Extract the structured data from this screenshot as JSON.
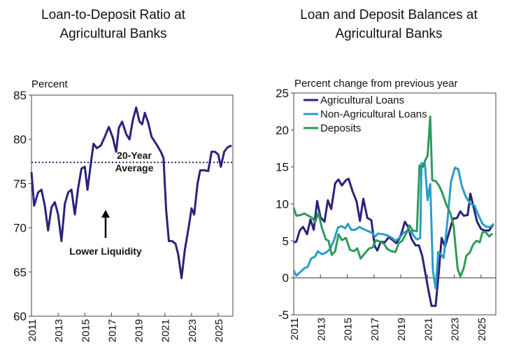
{
  "chart_data": [
    {
      "type": "line",
      "title": [
        "Loan-to-Deposit Ratio at",
        "Agricultural Banks"
      ],
      "ylabel": "Percent",
      "ylim": [
        60,
        85
      ],
      "yticks": [
        60,
        65,
        70,
        75,
        80,
        85
      ],
      "xlim": [
        2011,
        2026.1
      ],
      "xticks": [
        "2011",
        "2013",
        "2015",
        "2017",
        "2019",
        "2021",
        "2023",
        "2025"
      ],
      "grid": false,
      "color": "#28237a",
      "reference_line": {
        "value": 77.4,
        "label": [
          "20-Year",
          "Average"
        ],
        "style": "dotted"
      },
      "annotation": {
        "text": "Lower Liquidity",
        "arrow": "up"
      },
      "series": [
        {
          "x": [
            2011.0,
            2011.2,
            2011.5,
            2011.75,
            2012.0,
            2012.25,
            2012.5,
            2012.75,
            2013.0,
            2013.25,
            2013.5,
            2013.75,
            2014.0,
            2014.25,
            2014.5,
            2014.75,
            2015.0,
            2015.2,
            2015.5,
            2015.65,
            2015.9,
            2016.2,
            2016.5,
            2016.8,
            2017.1,
            2017.35,
            2017.55,
            2017.8,
            2018.1,
            2018.35,
            2018.6,
            2018.85,
            2019.1,
            2019.3,
            2019.5,
            2019.75,
            2020.0,
            2020.35,
            2020.7,
            2020.9,
            2021.1,
            2021.3,
            2021.55,
            2021.8,
            2022.0,
            2022.25,
            2022.5,
            2022.8,
            2023.0,
            2023.2,
            2023.45,
            2023.65,
            2024.0,
            2024.25,
            2024.5,
            2024.75,
            2025.0,
            2025.2,
            2025.45,
            2025.7,
            2026.0
          ],
          "y": [
            76.3,
            72.5,
            74.0,
            74.3,
            72.5,
            69.7,
            72.3,
            72.9,
            71.5,
            68.5,
            72.7,
            74.0,
            74.3,
            71.5,
            74.5,
            76.7,
            76.9,
            74.3,
            77.8,
            79.5,
            79.0,
            79.3,
            80.3,
            81.4,
            80.2,
            78.6,
            81.3,
            82.0,
            80.6,
            80.0,
            82.2,
            83.6,
            82.0,
            81.7,
            83.0,
            81.9,
            80.3,
            79.5,
            78.6,
            77.9,
            72.0,
            68.5,
            68.5,
            68.2,
            67.0,
            64.3,
            67.5,
            70.2,
            72.2,
            71.5,
            75.0,
            76.5,
            76.5,
            76.4,
            78.6,
            78.6,
            78.3,
            76.9,
            78.6,
            79.1,
            79.3
          ]
        }
      ]
    },
    {
      "type": "line",
      "title": [
        "Loan and Deposit Balances at",
        "Agricultural Banks"
      ],
      "ylabel": "Percent change from previous year",
      "ylim": [
        -5,
        25
      ],
      "yticks": [
        -5,
        0,
        5,
        10,
        15,
        20,
        25
      ],
      "xlim": [
        2011,
        2026.1
      ],
      "xticks": [
        "2011",
        "2013",
        "2015",
        "2017",
        "2019",
        "2021",
        "2023",
        "2025"
      ],
      "grid": false,
      "legend": "top-left",
      "series": [
        {
          "name": "Agricultural Loans",
          "color": "#28237a",
          "x": [
            2011.0,
            2011.2,
            2011.45,
            2011.7,
            2012.0,
            2012.25,
            2012.5,
            2012.75,
            2013.0,
            2013.3,
            2013.55,
            2013.8,
            2014.1,
            2014.35,
            2014.6,
            2014.9,
            2015.1,
            2015.4,
            2015.7,
            2015.95,
            2016.2,
            2016.5,
            2016.8,
            2017.05,
            2017.25,
            2017.5,
            2017.8,
            2018.1,
            2018.4,
            2018.65,
            2018.9,
            2019.1,
            2019.3,
            2019.55,
            2019.8,
            2020.1,
            2020.35,
            2020.6,
            2020.85,
            2021.1,
            2021.3,
            2021.6,
            2021.85,
            2022.05,
            2022.3,
            2022.6,
            2022.9,
            2023.2,
            2023.45,
            2023.7,
            2024.0,
            2024.2,
            2024.45,
            2024.7,
            2025.0,
            2025.3,
            2025.6,
            2025.9
          ],
          "y": [
            4.8,
            4.9,
            6.4,
            6.9,
            5.9,
            7.9,
            6.5,
            10.4,
            8.2,
            7.6,
            10.5,
            9.3,
            12.8,
            13.3,
            12.5,
            13.2,
            13.4,
            11.7,
            10.3,
            7.7,
            10.7,
            8.1,
            7.8,
            4.3,
            3.7,
            4.9,
            4.8,
            5.5,
            5.1,
            4.7,
            5.3,
            6.3,
            7.6,
            6.9,
            5.3,
            4.4,
            4.4,
            3.0,
            0.5,
            -2.0,
            -3.8,
            -3.8,
            1.0,
            5.4,
            4.2,
            6.1,
            8.0,
            8.1,
            9.0,
            8.4,
            8.5,
            11.4,
            9.5,
            7.6,
            6.6,
            6.4,
            6.4,
            7.2
          ]
        },
        {
          "name": "Non-Agricultural Loans",
          "color": "#2a9cc8",
          "x": [
            2011.0,
            2011.2,
            2011.5,
            2011.8,
            2012.05,
            2012.3,
            2012.6,
            2012.8,
            2013.1,
            2013.4,
            2013.7,
            2014.0,
            2014.3,
            2014.6,
            2014.85,
            2015.05,
            2015.3,
            2015.6,
            2015.9,
            2016.2,
            2016.6,
            2016.9,
            2017.1,
            2017.3,
            2017.7,
            2018.05,
            2018.35,
            2018.6,
            2018.95,
            2019.2,
            2019.5,
            2019.8,
            2020.0,
            2020.2,
            2020.45,
            2020.55,
            2020.8,
            2021.0,
            2021.2,
            2021.4,
            2021.6,
            2021.8,
            2022.0,
            2022.2,
            2022.5,
            2022.75,
            2023.05,
            2023.3,
            2023.55,
            2023.85,
            2024.2,
            2024.5,
            2024.8,
            2025.1,
            2025.4,
            2025.7,
            2025.95
          ],
          "y": [
            1.0,
            0.3,
            0.8,
            1.3,
            1.5,
            2.6,
            2.9,
            3.6,
            3.2,
            3.4,
            3.9,
            5.0,
            6.8,
            7.0,
            6.7,
            7.3,
            6.5,
            6.5,
            6.9,
            6.6,
            6.3,
            6.0,
            5.6,
            6.0,
            5.9,
            5.7,
            5.4,
            5.0,
            5.5,
            6.1,
            6.3,
            6.3,
            5.6,
            5.2,
            5.4,
            15.5,
            15.4,
            10.5,
            12.7,
            1.0,
            -1.4,
            3.5,
            3.2,
            2.7,
            8.0,
            13.0,
            14.9,
            14.7,
            12.5,
            11.0,
            10.0,
            9.8,
            8.5,
            7.3,
            6.9,
            6.9,
            7.3
          ]
        },
        {
          "name": "Deposits",
          "color": "#2e9a5a",
          "x": [
            2011.0,
            2011.2,
            2011.5,
            2011.8,
            2012.1,
            2012.4,
            2012.6,
            2012.85,
            2013.1,
            2013.4,
            2013.6,
            2013.85,
            2014.1,
            2014.35,
            2014.6,
            2014.9,
            2015.2,
            2015.5,
            2015.75,
            2016.0,
            2016.3,
            2016.65,
            2016.9,
            2017.15,
            2017.45,
            2017.75,
            2018.0,
            2018.3,
            2018.6,
            2018.85,
            2019.1,
            2019.4,
            2019.65,
            2019.9,
            2020.2,
            2020.4,
            2020.65,
            2020.85,
            2021.0,
            2021.2,
            2021.35,
            2021.6,
            2021.85,
            2022.1,
            2022.4,
            2022.7,
            2022.95,
            2023.1,
            2023.25,
            2023.45,
            2023.7,
            2023.9,
            2024.15,
            2024.4,
            2024.65,
            2024.9,
            2025.1,
            2025.35,
            2025.6,
            2025.85
          ],
          "y": [
            9.5,
            8.4,
            8.5,
            8.7,
            8.4,
            8.1,
            7.5,
            8.8,
            6.8,
            5.2,
            5.0,
            3.1,
            3.6,
            5.9,
            5.1,
            5.4,
            3.8,
            3.6,
            4.0,
            2.6,
            3.3,
            4.0,
            4.1,
            5.1,
            4.9,
            4.6,
            3.9,
            3.6,
            3.5,
            4.7,
            5.0,
            6.0,
            7.1,
            6.4,
            6.3,
            15.2,
            15.0,
            16.0,
            16.5,
            21.8,
            13.2,
            13.1,
            12.5,
            11.5,
            9.9,
            8.8,
            7.0,
            4.0,
            1.2,
            0.2,
            1.3,
            3.0,
            3.4,
            4.5,
            5.0,
            4.8,
            6.2,
            6.2,
            5.6,
            6.0
          ]
        }
      ]
    }
  ]
}
